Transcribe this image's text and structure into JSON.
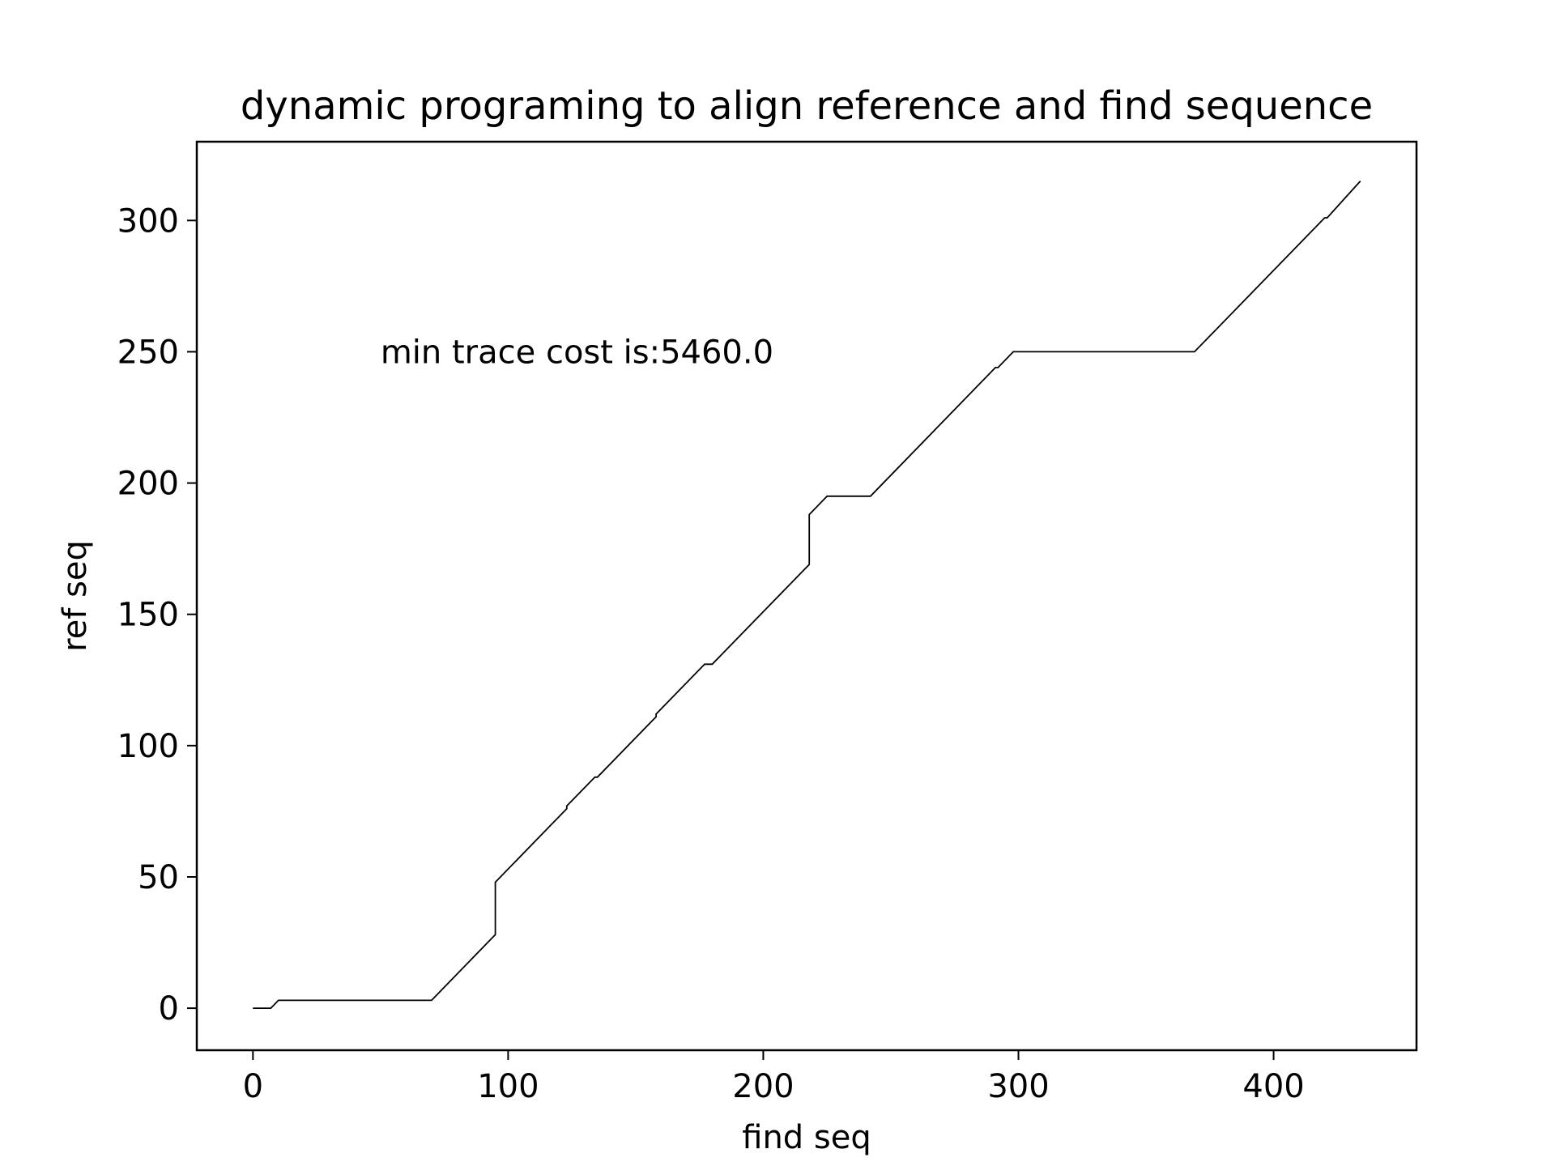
{
  "chart_data": {
    "type": "line",
    "title": "dynamic programing to align reference and find sequence",
    "xlabel": "find seq",
    "ylabel": "ref seq",
    "xlim": [
      -22,
      456
    ],
    "ylim": [
      -16,
      330
    ],
    "xticks": [
      0,
      100,
      200,
      300,
      400
    ],
    "yticks": [
      0,
      50,
      100,
      150,
      200,
      250,
      300
    ],
    "grid": false,
    "annotation": {
      "text": "min trace cost is:5460.0",
      "x": 50,
      "y": 250
    },
    "series": [
      {
        "color": "#000000",
        "x": [
          0,
          7,
          10,
          70,
          95,
          95,
          123,
          123,
          134,
          135,
          158,
          158,
          177,
          180,
          218,
          218,
          225,
          242,
          291,
          292,
          298,
          369,
          376,
          377,
          420,
          421,
          434
        ],
        "y": [
          0,
          0,
          3,
          3,
          28,
          48,
          76,
          77,
          88,
          88,
          111,
          112,
          131,
          131,
          169,
          188,
          195,
          195,
          244,
          244,
          250,
          250,
          257,
          258,
          301,
          301,
          315
        ]
      }
    ]
  }
}
